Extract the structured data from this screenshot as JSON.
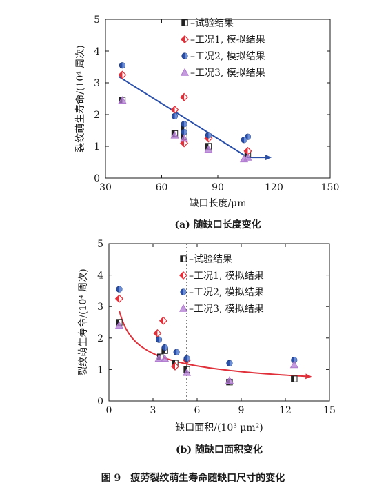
{
  "chart_data": [
    {
      "type": "scatter",
      "xlabel": "缺口长度/μm",
      "ylabel": "裂纹萌生寿命/(10⁴ 周次)",
      "xlim": [
        30,
        150
      ],
      "ylim": [
        0,
        5
      ],
      "xticks": [
        30,
        60,
        90,
        120,
        150
      ],
      "yticks": [
        0,
        1,
        2,
        3,
        4,
        5
      ],
      "caption": "(a) 随缺口长度变化",
      "legend_position": "top-right",
      "series": [
        {
          "name": "试验结果",
          "marker": "half-square",
          "color": "#222222",
          "x": [
            39,
            67,
            72,
            72,
            85,
            106
          ],
          "y": [
            2.45,
            1.4,
            1.3,
            1.6,
            1.0,
            0.75
          ]
        },
        {
          "name": "工况1, 模拟结果",
          "marker": "diamond",
          "color": "#e0303a",
          "x": [
            39,
            67,
            72,
            72,
            85,
            106
          ],
          "y": [
            3.25,
            2.15,
            2.55,
            1.1,
            1.25,
            0.85
          ]
        },
        {
          "name": "工况2, 模拟结果",
          "marker": "circle",
          "color": "#2a4fa8",
          "x": [
            39,
            67,
            72,
            72,
            85,
            106,
            104
          ],
          "y": [
            3.55,
            1.95,
            1.7,
            1.45,
            1.35,
            1.3,
            1.2
          ]
        },
        {
          "name": "工况3, 模拟结果",
          "marker": "triangle",
          "color": "#b07ad0",
          "x": [
            39,
            67,
            72,
            85,
            104,
            106
          ],
          "y": [
            2.45,
            1.35,
            1.25,
            0.9,
            0.6,
            0.65
          ]
        }
      ],
      "trend": {
        "type": "linear",
        "color": "#2a4fa8",
        "x": [
          37,
          106,
          118
        ],
        "y": [
          3.2,
          0.65,
          0.65
        ]
      }
    },
    {
      "type": "scatter",
      "xlabel": "缺口面积/(10³ μm²)",
      "ylabel": "裂纹萌生寿命/(10⁴ 周次)",
      "xlim": [
        0,
        15
      ],
      "ylim": [
        0,
        5
      ],
      "xticks": [
        0,
        3,
        6,
        9,
        12,
        15
      ],
      "yticks": [
        0,
        1,
        2,
        3,
        4,
        5
      ],
      "caption": "(b) 随缺口面积变化",
      "legend_position": "top-right",
      "vline_x": 5.3,
      "series": [
        {
          "name": "试验结果",
          "marker": "half-square",
          "color": "#222222",
          "x": [
            0.7,
            3.5,
            3.8,
            4.5,
            5.3,
            8.2,
            12.6
          ],
          "y": [
            2.5,
            1.4,
            1.6,
            1.2,
            1.0,
            0.6,
            0.7
          ]
        },
        {
          "name": "工况1, 模拟结果",
          "marker": "diamond",
          "color": "#e0303a",
          "x": [
            0.7,
            3.3,
            3.7,
            4.5,
            5.3
          ],
          "y": [
            3.25,
            2.15,
            2.55,
            1.1,
            1.3
          ]
        },
        {
          "name": "工况2, 模拟结果",
          "marker": "circle",
          "color": "#2a4fa8",
          "x": [
            0.7,
            3.4,
            3.8,
            4.6,
            5.3,
            8.2,
            12.6
          ],
          "y": [
            3.55,
            1.95,
            1.7,
            1.55,
            1.35,
            1.2,
            1.3
          ]
        },
        {
          "name": "工况3, 模拟结果",
          "marker": "triangle",
          "color": "#b07ad0",
          "x": [
            0.7,
            3.4,
            3.8,
            5.3,
            8.2,
            12.6
          ],
          "y": [
            2.4,
            1.35,
            1.35,
            0.9,
            0.65,
            1.15
          ]
        }
      ],
      "trend": {
        "type": "power",
        "color": "#e0303a",
        "a": 2.45,
        "b": -0.44,
        "x_start": 0.7,
        "x_end": 13.7
      }
    }
  ],
  "figure_caption": "图 9　疲劳裂纹萌生寿命随缺口尺寸的变化"
}
